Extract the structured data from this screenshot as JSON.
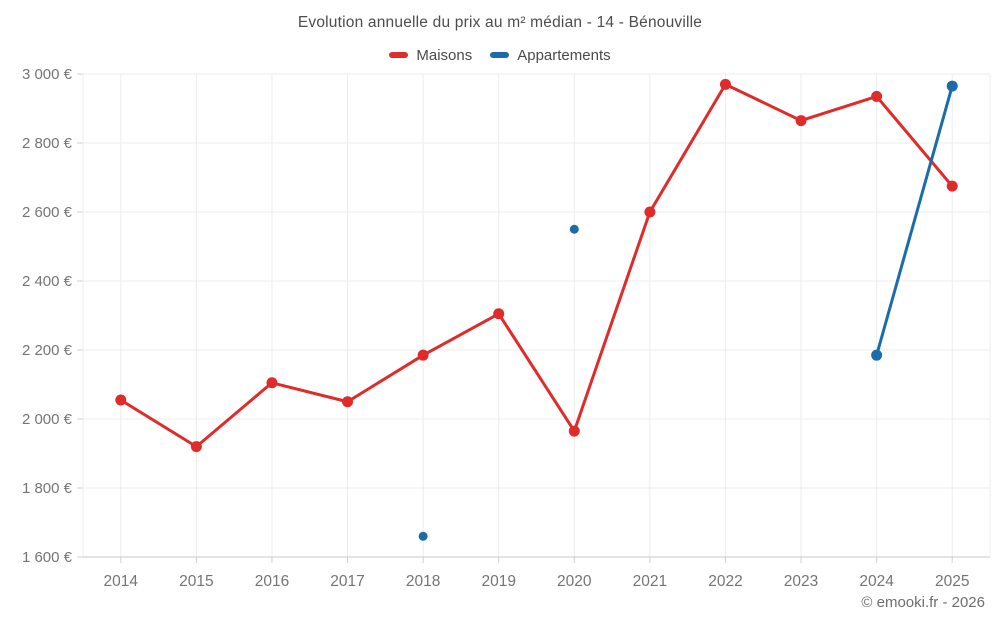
{
  "title": "Evolution annuelle du prix au m² médian - 14 - Bénouville",
  "footer": "© emooki.fr - 2026",
  "legend": {
    "items": [
      {
        "label": "Maisons",
        "color": "#e02b2b"
      },
      {
        "label": "Appartements",
        "color": "#1b6ca8"
      }
    ]
  },
  "colors": {
    "maisons_red": "#e02b2b",
    "appartements_blue": "#1b6ca8",
    "title_text": "#4d4d4d",
    "axis_text": "#757575",
    "grid_line": "#ececec",
    "axis_line": "#c9c9c9",
    "tick_mark": "#d0d0d0",
    "background": "#ffffff"
  },
  "chart_data": {
    "type": "line",
    "title": "Evolution annuelle du prix au m² médian - 14 - Bénouville",
    "categories": [
      "2014",
      "2015",
      "2016",
      "2017",
      "2018",
      "2019",
      "2020",
      "2021",
      "2022",
      "2023",
      "2024",
      "2025"
    ],
    "series": [
      {
        "name": "Maisons",
        "color": "#e02b2b",
        "values": [
          2055,
          1920,
          2105,
          2050,
          2185,
          2305,
          1965,
          2600,
          2970,
          2865,
          2935,
          2675
        ]
      },
      {
        "name": "Appartements",
        "color": "#1b6ca8",
        "values": [
          null,
          null,
          null,
          null,
          1660,
          null,
          2550,
          null,
          null,
          null,
          2185,
          2965
        ]
      }
    ],
    "xlabel": "",
    "ylabel": "",
    "ylim": [
      1600,
      3000
    ],
    "yticks": [
      1600,
      1800,
      2000,
      2200,
      2400,
      2600,
      2800,
      3000
    ],
    "ytick_labels": [
      "1 600 €",
      "1 800 €",
      "2 000 €",
      "2 200 €",
      "2 400 €",
      "2 600 €",
      "2 800 €",
      "3 000 €"
    ],
    "grid": true,
    "legend_position": "top"
  }
}
